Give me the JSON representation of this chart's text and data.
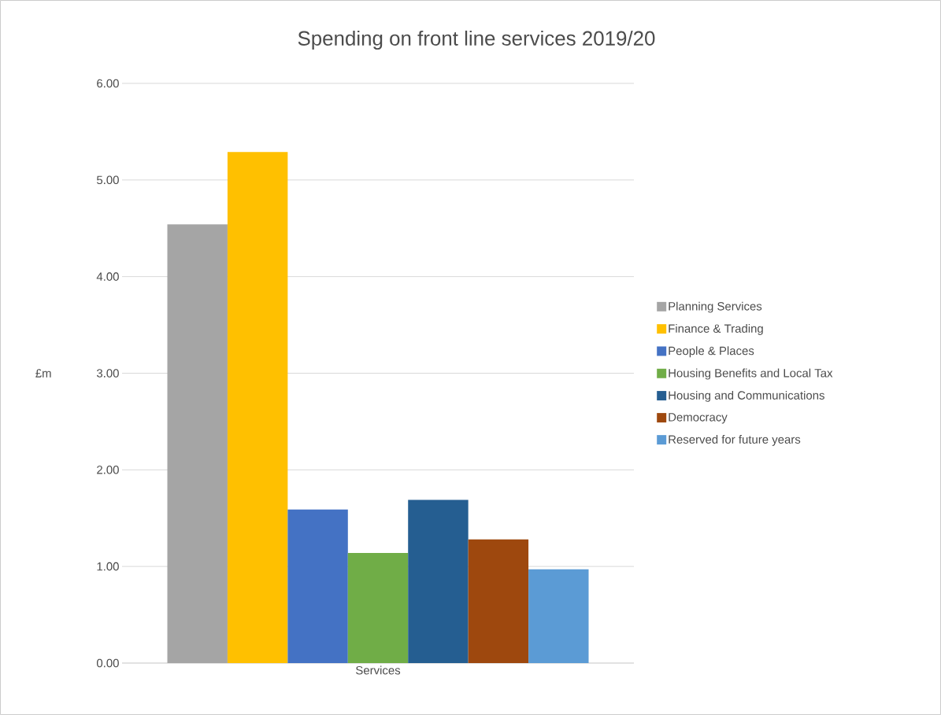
{
  "chart_data": {
    "type": "bar",
    "title": "Spending on front line services 2019/20",
    "ylabel": "£m",
    "categories": [
      "Services"
    ],
    "series": [
      {
        "name": "Planning Services",
        "color": "#a5a5a5",
        "values": [
          4.54
        ]
      },
      {
        "name": "Finance & Trading",
        "color": "#ffc000",
        "values": [
          5.29
        ]
      },
      {
        "name": "People & Places",
        "color": "#4472c4",
        "values": [
          1.59
        ]
      },
      {
        "name": "Housing Benefits and Local Tax",
        "color": "#70ad47",
        "values": [
          1.14
        ]
      },
      {
        "name": "Housing and Communications",
        "color": "#255e91",
        "values": [
          1.69
        ]
      },
      {
        "name": "Democracy",
        "color": "#9e480e",
        "values": [
          1.28
        ]
      },
      {
        "name": "Reserved for future years",
        "color": "#5b9bd5",
        "values": [
          0.97
        ]
      }
    ],
    "ylim": [
      0,
      6
    ],
    "yticks": [
      {
        "value": 0,
        "label": "0.00"
      },
      {
        "value": 1,
        "label": "1.00"
      },
      {
        "value": 2,
        "label": "2.00"
      },
      {
        "value": 3,
        "label": "3.00"
      },
      {
        "value": 4,
        "label": "4.00"
      },
      {
        "value": 5,
        "label": "5.00"
      },
      {
        "value": 6,
        "label": "6.00"
      }
    ],
    "grid": "y",
    "legend": "right"
  }
}
